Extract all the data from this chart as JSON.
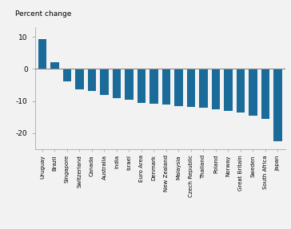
{
  "categories": [
    "Uruguay",
    "Brazil",
    "Singapore",
    "Switzerland",
    "Canada",
    "Australia",
    "India",
    "Israel",
    "Euro Area",
    "Denmark",
    "New Zealand",
    "Malaysia",
    "Czech Republic",
    "Thailand",
    "Poland",
    "Norway",
    "Great Britain",
    "Sweden",
    "South Africa",
    "Japan"
  ],
  "values": [
    9.3,
    2.2,
    -4.0,
    -6.5,
    -6.8,
    -8.2,
    -9.0,
    -9.5,
    -10.5,
    -10.8,
    -11.2,
    -11.5,
    -11.8,
    -12.2,
    -12.5,
    -13.0,
    -13.5,
    -14.5,
    -15.5,
    -22.5
  ],
  "bar_color": "#1a6b9a",
  "title": "Percent change",
  "yticks": [
    10,
    0,
    -10,
    -20
  ],
  "ylim": [
    -25,
    13
  ],
  "background_color": "#f2f2f2",
  "spine_color": "#aaaaaa",
  "zero_line_color": "#888888"
}
